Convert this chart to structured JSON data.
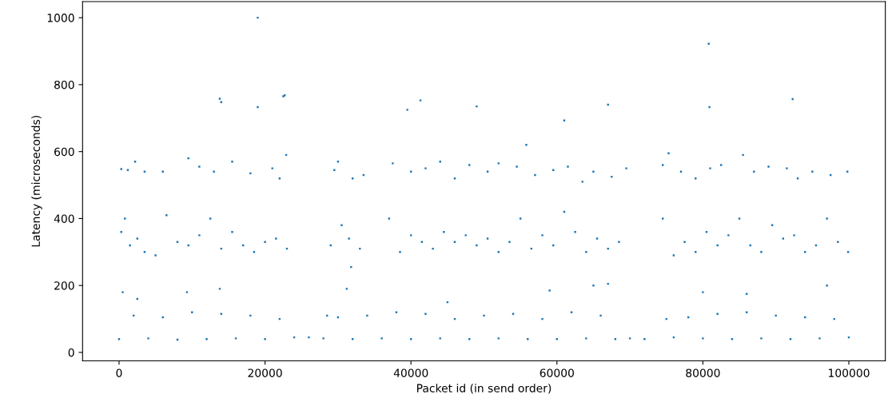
{
  "chart_data": {
    "type": "scatter",
    "xlabel": "Packet id (in send order)",
    "ylabel": "Latency (microseconds)",
    "xlim": [
      -5000,
      105000
    ],
    "ylim": [
      -25,
      1048
    ],
    "xticks": [
      0,
      20000,
      40000,
      60000,
      80000,
      100000
    ],
    "yticks": [
      0,
      200,
      400,
      600,
      800,
      1000
    ],
    "marker": "square",
    "grid": false,
    "legend": false,
    "series": [
      {
        "color": "#1f77b4",
        "x": [
          19000,
          80800,
          13800,
          14000,
          19000,
          22500,
          22700,
          39500,
          41300,
          49000,
          61000,
          67000,
          80900,
          92300,
          55800,
          22900,
          300,
          1200,
          2200,
          3500,
          6000,
          9500,
          11000,
          13000,
          15500,
          18000,
          21000,
          22000,
          29500,
          30000,
          32000,
          33500,
          37500,
          40000,
          42000,
          44000,
          46000,
          48000,
          50500,
          52000,
          54500,
          57000,
          59500,
          61500,
          63500,
          65000,
          67500,
          69500,
          74500,
          75300,
          77000,
          79000,
          81000,
          82500,
          85500,
          87000,
          89000,
          91500,
          93000,
          95000,
          97500,
          99800,
          300,
          800,
          1500,
          2500,
          3500,
          5000,
          6500,
          8000,
          9500,
          11000,
          12500,
          14000,
          15500,
          17000,
          18500,
          20000,
          21500,
          23000,
          29000,
          30500,
          31500,
          33000,
          37000,
          38500,
          40000,
          41500,
          43000,
          44500,
          46000,
          47500,
          49000,
          50500,
          52000,
          53500,
          55000,
          56500,
          58000,
          59500,
          61000,
          62500,
          64000,
          65500,
          67000,
          68500,
          74500,
          76000,
          77500,
          79000,
          80500,
          82000,
          83500,
          85000,
          86500,
          88000,
          89500,
          91000,
          92500,
          94000,
          95500,
          97000,
          98500,
          99900,
          31800,
          500,
          9300,
          13800,
          31200,
          65000,
          67000,
          97000,
          80000,
          86000,
          2500,
          28500,
          45000,
          59000,
          0,
          4000,
          8000,
          12000,
          16000,
          20000,
          24000,
          26000,
          28000,
          32000,
          36000,
          40000,
          44000,
          48000,
          52000,
          56000,
          60000,
          64000,
          68000,
          70000,
          72000,
          76000,
          80000,
          84000,
          88000,
          92000,
          96000,
          100000,
          2000,
          6000,
          10000,
          14000,
          18000,
          22000,
          30000,
          34000,
          38000,
          42000,
          46000,
          50000,
          54000,
          58000,
          62000,
          66000,
          75000,
          78000,
          82000,
          86000,
          90000,
          94000,
          98000
        ],
        "values": [
          1000,
          922,
          758,
          748,
          733,
          765,
          768,
          725,
          753,
          735,
          693,
          740,
          733,
          757,
          620,
          590,
          548,
          545,
          570,
          540,
          540,
          580,
          555,
          540,
          570,
          535,
          550,
          520,
          545,
          570,
          520,
          530,
          565,
          540,
          550,
          570,
          520,
          560,
          540,
          565,
          555,
          530,
          545,
          555,
          510,
          540,
          525,
          550,
          560,
          595,
          540,
          520,
          550,
          560,
          590,
          540,
          555,
          550,
          520,
          540,
          530,
          540,
          360,
          400,
          320,
          340,
          300,
          290,
          410,
          330,
          320,
          350,
          400,
          310,
          360,
          320,
          300,
          330,
          340,
          310,
          320,
          380,
          340,
          310,
          400,
          300,
          350,
          330,
          310,
          360,
          330,
          350,
          320,
          340,
          300,
          330,
          400,
          310,
          350,
          320,
          420,
          360,
          300,
          340,
          310,
          330,
          400,
          290,
          330,
          300,
          360,
          320,
          350,
          400,
          320,
          300,
          380,
          340,
          350,
          300,
          320,
          400,
          330,
          300,
          255,
          180,
          180,
          190,
          190,
          200,
          205,
          200,
          180,
          175,
          160,
          110,
          150,
          185,
          40,
          42,
          38,
          40,
          42,
          40,
          45,
          45,
          42,
          40,
          42,
          40,
          42,
          40,
          42,
          40,
          40,
          42,
          40,
          42,
          40,
          45,
          42,
          40,
          42,
          40,
          42,
          45,
          110,
          105,
          120,
          115,
          110,
          100,
          105,
          110,
          120,
          115,
          100,
          110,
          115,
          100,
          120,
          110,
          100,
          105,
          115,
          120,
          110,
          105,
          100
        ]
      }
    ]
  }
}
